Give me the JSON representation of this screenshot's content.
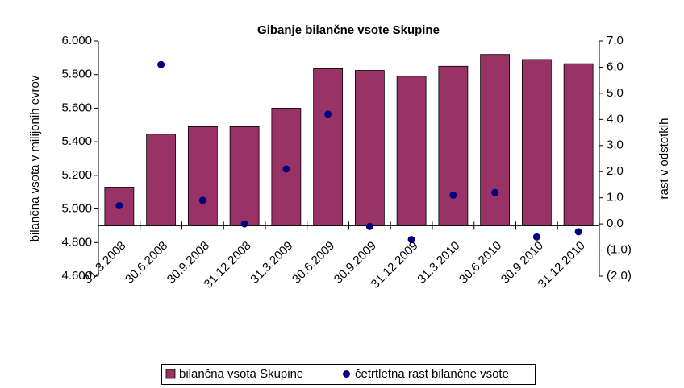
{
  "chart_data": {
    "type": "bar",
    "title": "Gibanje bilančne vsote Skupine",
    "y_label": "bilančna vsota v milijonih evrov",
    "y2_label": "rast v odstotkih",
    "categories": [
      "31.3.2008",
      "30.6.2008",
      "30.9.2008",
      "31.12.2008",
      "31.3.2009",
      "30.6.2009",
      "30.9.2009",
      "31.12.2009",
      "31.3.2010",
      "30.6.2010",
      "30.9.2010",
      "31.12.2010"
    ],
    "series": [
      {
        "name": "bilančna vsota Skupine",
        "type": "bar",
        "color": "#993366",
        "axis": "y",
        "values": [
          5130,
          5445,
          5490,
          5490,
          5600,
          5835,
          5825,
          5790,
          5850,
          5920,
          5890,
          5865
        ]
      },
      {
        "name": "četrtletna rast bilančne vsote",
        "type": "scatter",
        "color": "#000080",
        "axis": "y2",
        "values": [
          0.7,
          6.1,
          0.9,
          0.0,
          2.1,
          4.2,
          -0.1,
          -0.6,
          1.1,
          1.2,
          -0.5,
          -0.3
        ]
      }
    ],
    "ylim": [
      4600,
      6000
    ],
    "yticks": [
      {
        "value": 4600,
        "label": "4.600"
      },
      {
        "value": 4800,
        "label": "4.800"
      },
      {
        "value": 5000,
        "label": "5.000"
      },
      {
        "value": 5200,
        "label": "5.200"
      },
      {
        "value": 5400,
        "label": "5.400"
      },
      {
        "value": 5600,
        "label": "5.600"
      },
      {
        "value": 5800,
        "label": "5.800"
      },
      {
        "value": 6000,
        "label": "6.000"
      }
    ],
    "x_axis_crosses": 4900,
    "y2lim": [
      -2,
      7
    ],
    "y2ticks": [
      {
        "value": -2,
        "label": "(2,0)"
      },
      {
        "value": -1,
        "label": "(1,0)"
      },
      {
        "value": 0,
        "label": "0,0"
      },
      {
        "value": 1,
        "label": "1,0"
      },
      {
        "value": 2,
        "label": "2,0"
      },
      {
        "value": 3,
        "label": "3,0"
      },
      {
        "value": 4,
        "label": "4,0"
      },
      {
        "value": 5,
        "label": "5,0"
      },
      {
        "value": 6,
        "label": "6,0"
      },
      {
        "value": 7,
        "label": "7,0"
      }
    ],
    "legend": "bottom"
  }
}
